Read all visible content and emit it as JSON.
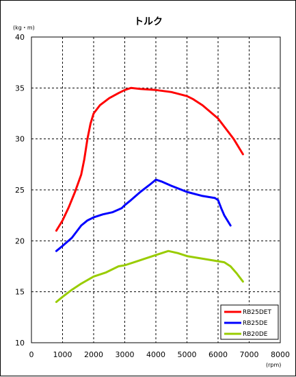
{
  "chart_data": {
    "type": "line",
    "title": "トルク",
    "ylabel": "(kg・m)",
    "xlabel": "(rpm)",
    "xlim": [
      0,
      8000
    ],
    "ylim": [
      10,
      40
    ],
    "xticks": [
      0,
      1000,
      2000,
      3000,
      4000,
      5000,
      6000,
      7000,
      8000
    ],
    "yticks": [
      10,
      15,
      20,
      25,
      30,
      35,
      40
    ],
    "grid": true,
    "legend_position": "bottom-right",
    "series": [
      {
        "name": "RB25DET",
        "color": "#ff0000",
        "x": [
          800,
          1000,
          1200,
          1400,
          1600,
          1700,
          1800,
          1900,
          2000,
          2200,
          2500,
          2800,
          3000,
          3200,
          3500,
          4000,
          4500,
          5000,
          5200,
          5500,
          6000,
          6500,
          6800
        ],
        "y": [
          21.0,
          22.0,
          23.3,
          24.8,
          26.5,
          28.0,
          30.0,
          31.5,
          32.5,
          33.3,
          34.0,
          34.5,
          34.8,
          35.0,
          34.9,
          34.8,
          34.6,
          34.2,
          33.9,
          33.3,
          32.0,
          30.0,
          28.5
        ]
      },
      {
        "name": "RB25DE",
        "color": "#0000ff",
        "x": [
          800,
          1000,
          1300,
          1600,
          1800,
          2000,
          2300,
          2600,
          2900,
          3000,
          3200,
          3500,
          3800,
          4000,
          4200,
          4500,
          5000,
          5500,
          5900,
          6000,
          6100,
          6200,
          6400
        ],
        "y": [
          19.0,
          19.5,
          20.3,
          21.5,
          22.0,
          22.3,
          22.6,
          22.8,
          23.2,
          23.5,
          24.0,
          24.8,
          25.5,
          26.0,
          25.8,
          25.4,
          24.8,
          24.4,
          24.2,
          24.0,
          23.2,
          22.5,
          21.5
        ]
      },
      {
        "name": "RB20DE",
        "color": "#99cc00",
        "x": [
          800,
          1000,
          1300,
          1600,
          2000,
          2400,
          2800,
          3000,
          3300,
          3600,
          4000,
          4400,
          4700,
          5000,
          5400,
          5800,
          6000,
          6200,
          6400,
          6600,
          6800
        ],
        "y": [
          14.0,
          14.5,
          15.2,
          15.8,
          16.5,
          16.9,
          17.5,
          17.6,
          17.9,
          18.2,
          18.6,
          19.0,
          18.8,
          18.5,
          18.3,
          18.1,
          18.0,
          17.9,
          17.5,
          16.8,
          16.0
        ]
      }
    ]
  }
}
